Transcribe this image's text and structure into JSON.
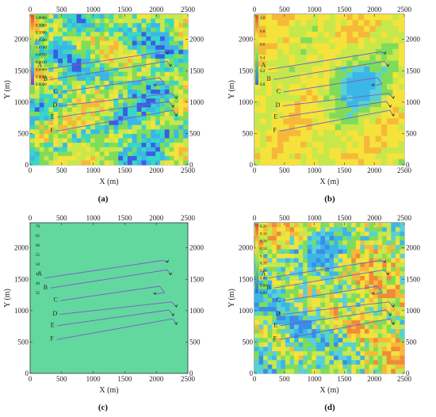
{
  "figure": {
    "panels": [
      {
        "id": "a",
        "caption": "(a)",
        "field": "a",
        "colorbar_labels": [
          "1.0000",
          "0.5000",
          "0.1000",
          "0.0500",
          "0.0100",
          "0.0050",
          "0.0010",
          "0.0005",
          "0.0001",
          "0.0000"
        ]
      },
      {
        "id": "b",
        "caption": "(b)",
        "field": "b",
        "colorbar_labels": [
          "1.0",
          "0.8",
          "0.6",
          "0.4",
          "0.2",
          "0.0"
        ]
      },
      {
        "id": "c",
        "caption": "(c)",
        "field": "c",
        "colorbar_labels": [
          "70",
          "65",
          "60",
          "55",
          "50",
          "45",
          "40",
          "35"
        ]
      },
      {
        "id": "d",
        "caption": "(d)",
        "field": "d",
        "colorbar_labels": [
          "0.20",
          "0.18",
          "0.16",
          "0.14",
          "0.12",
          "0.10",
          "0.08",
          "0.06",
          "0.04",
          "0.02"
        ]
      }
    ]
  },
  "chart_data": {
    "type": "heatmap",
    "xlabel": "X (m)",
    "ylabel": "Y (m)",
    "xlim": [
      0,
      2500
    ],
    "ylim": [
      0,
      2400
    ],
    "x_ticks": [
      0,
      500,
      1000,
      1500,
      2000,
      2500
    ],
    "y_ticks": [
      0,
      500,
      1000,
      1500,
      2000
    ],
    "panel_captions": [
      "(a)",
      "(b)",
      "(c)",
      "(d)"
    ],
    "wells": [
      {
        "label": "A",
        "label_at": [
          230,
          1600
        ],
        "path": [
          [
            230,
            1520
          ],
          [
            2100,
            1800
          ],
          [
            2180,
            1770
          ]
        ]
      },
      {
        "label": "B",
        "label_at": [
          320,
          1380
        ],
        "path": [
          [
            320,
            1360
          ],
          [
            2170,
            1650
          ],
          [
            2230,
            1570
          ]
        ]
      },
      {
        "label": "C",
        "label_at": [
          480,
          1180
        ],
        "path": [
          [
            480,
            1160
          ],
          [
            2050,
            1390
          ],
          [
            2130,
            1290
          ],
          [
            1980,
            1260
          ]
        ]
      },
      {
        "label": "D",
        "label_at": [
          470,
          960
        ],
        "path": [
          [
            470,
            940
          ],
          [
            2240,
            1140
          ],
          [
            2320,
            1060
          ]
        ]
      },
      {
        "label": "E",
        "label_at": [
          430,
          780
        ],
        "path": [
          [
            430,
            760
          ],
          [
            2200,
            1010
          ],
          [
            2270,
            920
          ]
        ]
      },
      {
        "label": "F",
        "label_at": [
          420,
          560
        ],
        "path": [
          [
            420,
            540
          ],
          [
            2260,
            870
          ],
          [
            2320,
            780
          ]
        ]
      }
    ]
  }
}
